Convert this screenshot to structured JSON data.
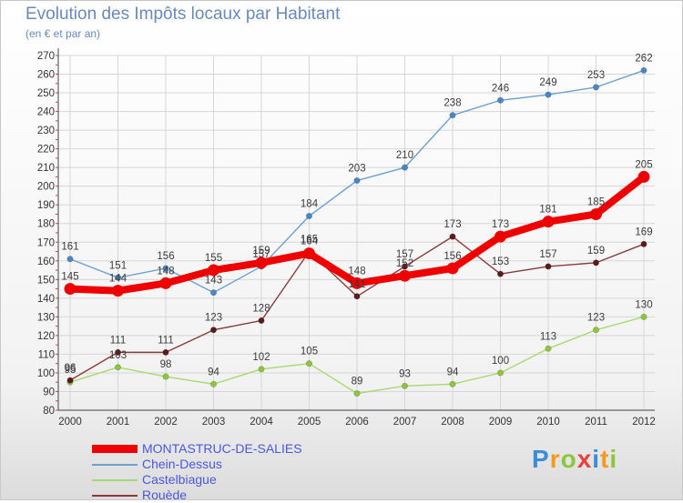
{
  "header": {
    "title": "Evolution des Impôts locaux par Habitant",
    "subtitle": "(en € et par an)"
  },
  "logo": {
    "text": "Proxiti",
    "letters": [
      {
        "char": "P",
        "color": "#3a8ed8"
      },
      {
        "char": "r",
        "color": "#f29a1f"
      },
      {
        "char": "o",
        "color": "#8cc63e"
      },
      {
        "char": "x",
        "color": "#e8403c"
      },
      {
        "char": "i",
        "color": "#3a8ed8"
      },
      {
        "char": "t",
        "color": "#f29a1f"
      },
      {
        "char": "i",
        "color": "#8cc63e"
      }
    ]
  },
  "chart_data": {
    "type": "line",
    "title": "Evolution des Impôts locaux par Habitant",
    "subtitle": "(en € et par an)",
    "xlabel": "",
    "ylabel": "",
    "x": [
      2000,
      2001,
      2002,
      2003,
      2004,
      2005,
      2006,
      2007,
      2008,
      2009,
      2010,
      2011,
      2012
    ],
    "ylim": [
      80,
      270
    ],
    "yticks": [
      80,
      90,
      100,
      110,
      120,
      130,
      140,
      150,
      160,
      170,
      180,
      190,
      200,
      210,
      220,
      230,
      240,
      250,
      260,
      270
    ],
    "grid": true,
    "legend_position": "bottom-left",
    "series": [
      {
        "name": "Chein-Dessus",
        "color": "#6c9ed2",
        "marker": "#4a86c6",
        "values": [
          161,
          151,
          156,
          143,
          157,
          184,
          203,
          210,
          238,
          246,
          249,
          253,
          262
        ]
      },
      {
        "name": "Castelbiague",
        "color": "#a8d870",
        "marker": "#8cc63e",
        "values": [
          95,
          103,
          98,
          94,
          102,
          105,
          89,
          93,
          94,
          100,
          113,
          123,
          130
        ]
      },
      {
        "name": "Rouède",
        "color": "#8a3a3a",
        "marker": "#5c1a1a",
        "values": [
          96,
          111,
          111,
          123,
          128,
          165,
          141,
          157,
          173,
          153,
          157,
          159,
          169
        ]
      },
      {
        "name": "MONTASTRUC-DE-SALIES",
        "color": "#ee0000",
        "marker": "#ee0000",
        "highlight": true,
        "values": [
          145,
          144,
          148,
          155,
          159,
          164,
          148,
          152,
          156,
          173,
          181,
          185,
          205
        ]
      }
    ]
  }
}
